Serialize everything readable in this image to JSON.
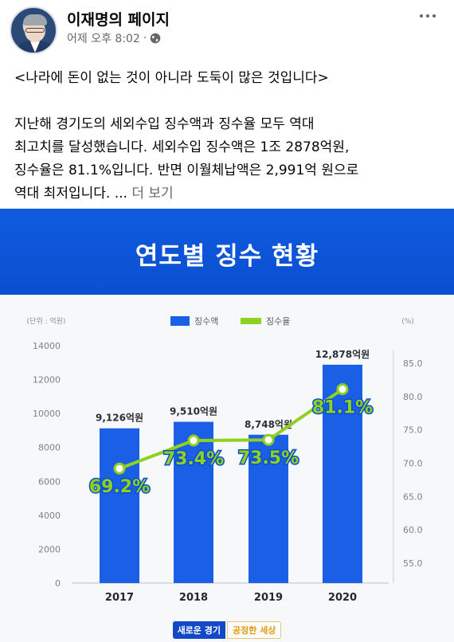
{
  "post": {
    "page_name": "이재명의 페이지",
    "timestamp": "어제 오후 8:02",
    "separator": "·",
    "icons": {
      "privacy": "globe-icon",
      "more": "more-options-icon"
    },
    "lines": [
      "<나라에 돈이 없는 것이 아니라 도둑이 많은 것입니다>",
      "",
      "지난해 경기도의 세외수입 징수액과 징수율 모두 역대",
      "최고치를 달성했습니다. 세외수입 징수액은 1조 2878억원,",
      "징수율은 81.1%입니다. 반면 이월체납액은 2,991억 원으로"
    ],
    "last_line": "역대 최저입니다. ...",
    "see_more": "더 보기"
  },
  "graphic": {
    "title": "연도별 징수 현황",
    "footer_left": "새로운 경기",
    "footer_right": "공정한 세상"
  },
  "chart_data": {
    "type": "bar",
    "title": "연도별 징수 현황",
    "categories": [
      "2017",
      "2018",
      "2019",
      "2020"
    ],
    "left_axis_label": "(단위 : 억원)",
    "right_axis_label": "(%)",
    "left_ylim": [
      0,
      14000
    ],
    "left_ticks": [
      "0",
      "2000",
      "4000",
      "6000",
      "8000",
      "10000",
      "12000",
      "14000"
    ],
    "right_ylim": [
      55,
      85
    ],
    "right_ticks": [
      "55.0",
      "60.0",
      "65.0",
      "70.0",
      "75.0",
      "80.0",
      "85.0"
    ],
    "series": [
      {
        "name": "징수액",
        "kind": "bar",
        "color": "#1a5fe6",
        "values": [
          9126,
          9510,
          8748,
          12878
        ],
        "labels": [
          "9,126억원",
          "9,510억원",
          "8,748억원",
          "12,878억원"
        ]
      },
      {
        "name": "징수율",
        "kind": "line",
        "color": "#8fd11f",
        "values": [
          69.2,
          73.4,
          73.5,
          81.1
        ],
        "labels": [
          "69.2%",
          "73.4%",
          "73.5%",
          "81.1%"
        ]
      }
    ],
    "legend_position": "top-center",
    "grid": false
  }
}
